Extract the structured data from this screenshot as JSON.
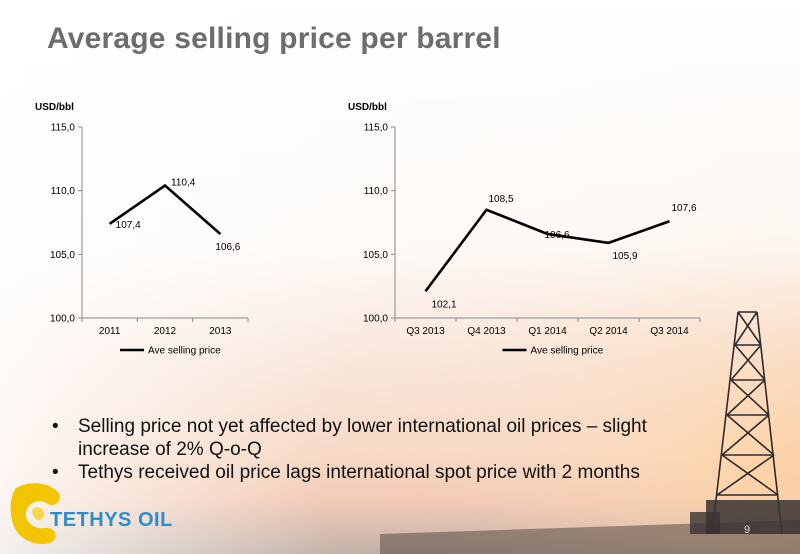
{
  "slide": {
    "title": "Average selling price per barrel",
    "bullets": [
      "Selling price not yet affected by lower international oil prices – slight increase of 2% Q-o-Q",
      "Tethys received oil price lags international spot price with 2 months"
    ],
    "logo_text": "TETHYS OIL",
    "page_number": "9"
  },
  "colors": {
    "title": "#6d6d6d",
    "line": "#000000",
    "logo_blue": "#2a8fd0",
    "logo_yellow": "#f2c500"
  },
  "chart_data": [
    {
      "type": "line",
      "ylabel": "USD/bbl",
      "ylim": [
        100,
        115
      ],
      "yticks": [
        "100,0",
        "105,0",
        "110,0",
        "115,0"
      ],
      "categories": [
        "2011",
        "2012",
        "2013"
      ],
      "series": [
        {
          "name": "Ave selling price",
          "values": [
            107.4,
            110.4,
            106.6
          ],
          "labels": [
            "107,4",
            "110,4",
            "106,6"
          ]
        }
      ],
      "legend": "bottom",
      "grid": false
    },
    {
      "type": "line",
      "ylabel": "USD/bbl",
      "ylim": [
        100,
        115
      ],
      "yticks": [
        "100,0",
        "105,0",
        "110,0",
        "115,0"
      ],
      "categories": [
        "Q3 2013",
        "Q4 2013",
        "Q1 2014",
        "Q2 2014",
        "Q3 2014"
      ],
      "series": [
        {
          "name": "Ave selling price",
          "values": [
            102.1,
            108.5,
            106.6,
            105.9,
            107.6
          ],
          "labels": [
            "102,1",
            "108,5",
            "106,6",
            "105,9",
            "107,6"
          ]
        }
      ],
      "legend": "bottom",
      "grid": false
    }
  ]
}
